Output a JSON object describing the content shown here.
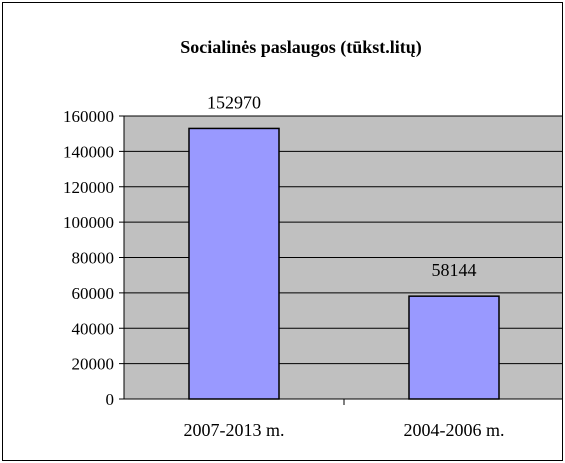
{
  "chart_data": {
    "type": "bar",
    "title": "Socialinės paslaugos (tūkst.litų)",
    "categories": [
      "2007-2013 m.",
      "2004-2006 m."
    ],
    "values": [
      152970,
      58144
    ],
    "data_labels": [
      "152970",
      "58144"
    ],
    "y_ticks": [
      "0",
      "20000",
      "40000",
      "60000",
      "80000",
      "100000",
      "120000",
      "140000",
      "160000"
    ],
    "ylim": [
      0,
      160000
    ],
    "grid": true,
    "legend": "none",
    "colors": {
      "bar_fill": "#9999ff",
      "plot_background": "#c0c0c0",
      "gridline": "#000000"
    }
  }
}
